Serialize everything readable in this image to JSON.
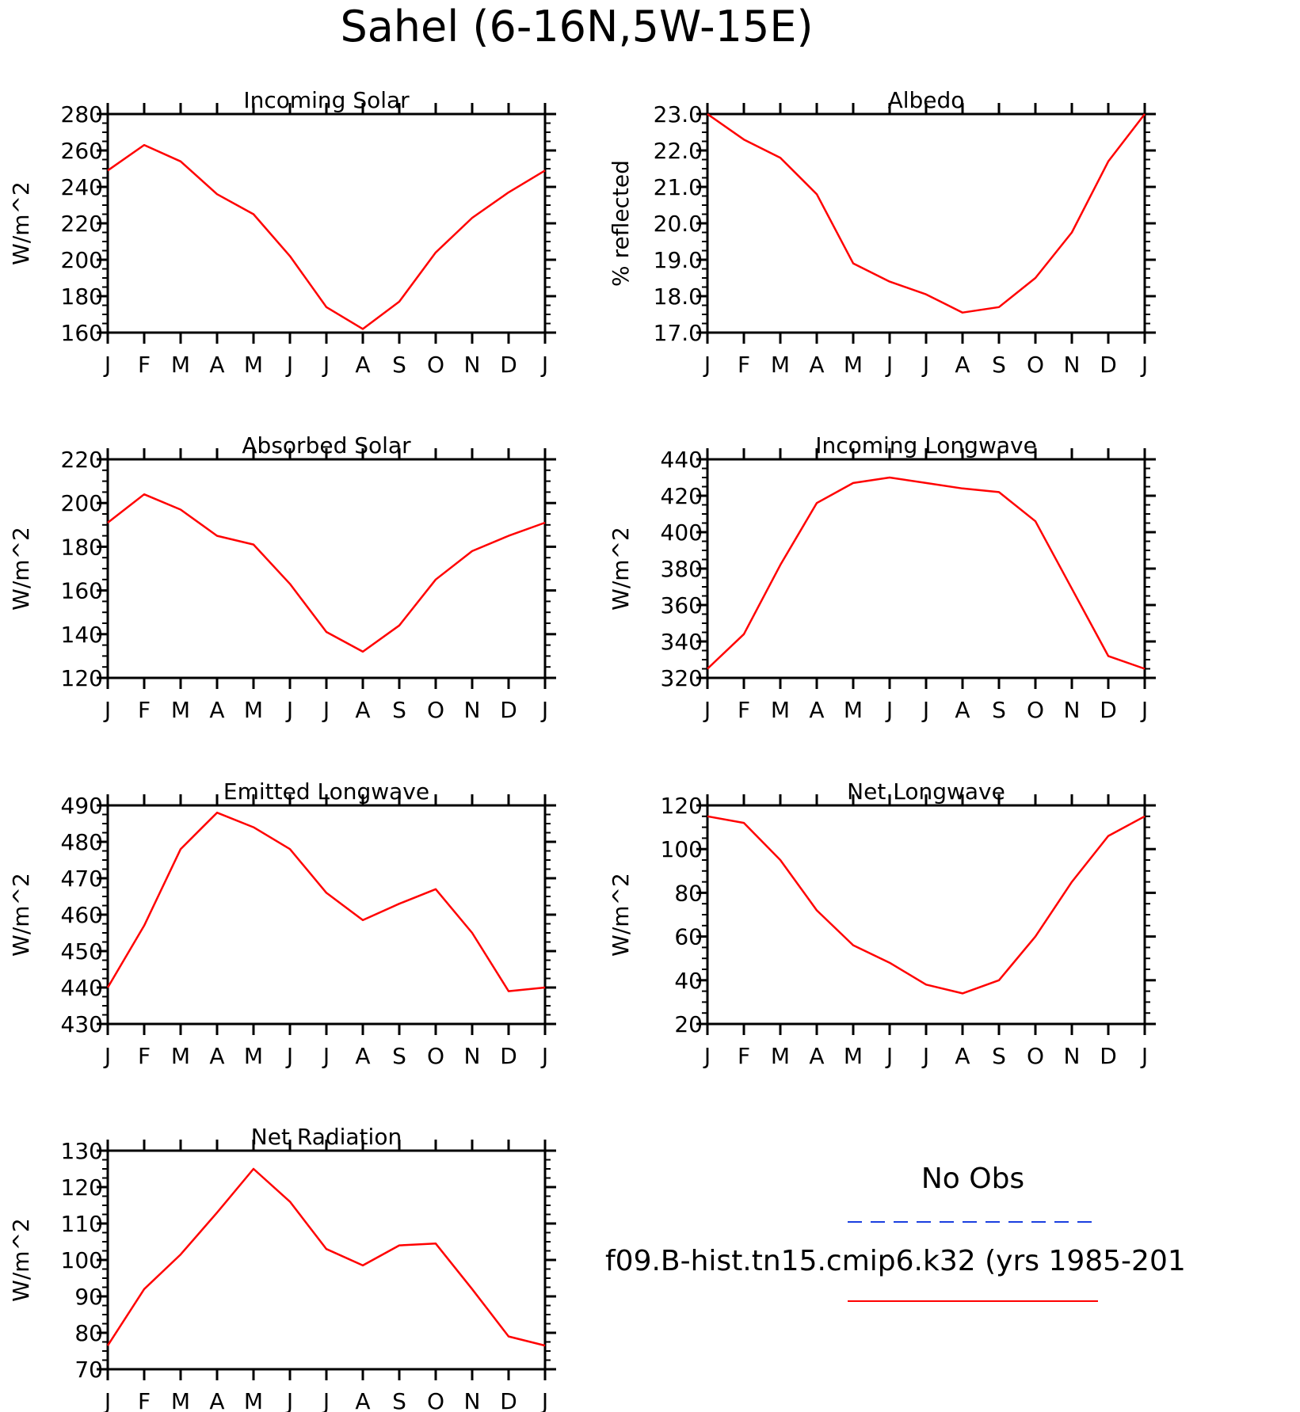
{
  "figure_title": "Sahel (6-16N,5W-15E)",
  "month_labels": [
    "J",
    "F",
    "M",
    "A",
    "M",
    "J",
    "J",
    "A",
    "S",
    "O",
    "N",
    "D",
    "J"
  ],
  "legend": {
    "obs_label": "No Obs",
    "obs_color": "#1a3fe0",
    "model_label": "f09.B-hist.tn15.cmip6.k32 (yrs 1985-201",
    "model_color": "#ff0000"
  },
  "chart_data": [
    {
      "type": "line",
      "title": "Incoming Solar",
      "ylabel": "W/m^2",
      "ylim": [
        160,
        280
      ],
      "yticks": [
        160,
        180,
        200,
        220,
        240,
        260,
        280
      ],
      "ytick_labels": [
        "160",
        "180",
        "200",
        "220",
        "240",
        "260",
        "280"
      ],
      "x": [
        "J",
        "F",
        "M",
        "A",
        "M",
        "J",
        "J",
        "A",
        "S",
        "O",
        "N",
        "D",
        "J"
      ],
      "series": [
        {
          "name": "f09.B-hist.tn15.cmip6.k32 (yrs 1985-201",
          "color": "#ff0000",
          "values": [
            249,
            263,
            254,
            236,
            225,
            202,
            174,
            162,
            177,
            204,
            223,
            237,
            249
          ]
        }
      ]
    },
    {
      "type": "line",
      "title": "Albedo",
      "ylabel": "% reflected",
      "ylim": [
        17,
        23
      ],
      "yticks": [
        17,
        18,
        19,
        20,
        21,
        22,
        23
      ],
      "ytick_labels": [
        "17.0",
        "18.0",
        "19.0",
        "20.0",
        "21.0",
        "22.0",
        "23.0"
      ],
      "x": [
        "J",
        "F",
        "M",
        "A",
        "M",
        "J",
        "J",
        "A",
        "S",
        "O",
        "N",
        "D",
        "J"
      ],
      "series": [
        {
          "name": "f09.B-hist.tn15.cmip6.k32 (yrs 1985-201",
          "color": "#ff0000",
          "values": [
            23.0,
            22.3,
            21.8,
            20.8,
            18.9,
            18.4,
            18.05,
            17.55,
            17.7,
            18.5,
            19.75,
            21.7,
            23.0
          ]
        }
      ]
    },
    {
      "type": "line",
      "title": "Absorbed Solar",
      "ylabel": "W/m^2",
      "ylim": [
        120,
        220
      ],
      "yticks": [
        120,
        140,
        160,
        180,
        200,
        220
      ],
      "ytick_labels": [
        "120",
        "140",
        "160",
        "180",
        "200",
        "220"
      ],
      "x": [
        "J",
        "F",
        "M",
        "A",
        "M",
        "J",
        "J",
        "A",
        "S",
        "O",
        "N",
        "D",
        "J"
      ],
      "series": [
        {
          "name": "f09.B-hist.tn15.cmip6.k32 (yrs 1985-201",
          "color": "#ff0000",
          "values": [
            191,
            204,
            197,
            185,
            181,
            163,
            141,
            132,
            144,
            165,
            178,
            185,
            191
          ]
        }
      ]
    },
    {
      "type": "line",
      "title": "Incoming Longwave",
      "ylabel": "W/m^2",
      "ylim": [
        320,
        440
      ],
      "yticks": [
        320,
        340,
        360,
        380,
        400,
        420,
        440
      ],
      "ytick_labels": [
        "320",
        "340",
        "360",
        "380",
        "400",
        "420",
        "440"
      ],
      "x": [
        "J",
        "F",
        "M",
        "A",
        "M",
        "J",
        "J",
        "A",
        "S",
        "O",
        "N",
        "D",
        "J"
      ],
      "series": [
        {
          "name": "f09.B-hist.tn15.cmip6.k32 (yrs 1985-201",
          "color": "#ff0000",
          "values": [
            325,
            344,
            382,
            416,
            427,
            430,
            427,
            424,
            422,
            406,
            369,
            332,
            325
          ]
        }
      ]
    },
    {
      "type": "line",
      "title": "Emitted Longwave",
      "ylabel": "W/m^2",
      "ylim": [
        430,
        490
      ],
      "yticks": [
        430,
        440,
        450,
        460,
        470,
        480,
        490
      ],
      "ytick_labels": [
        "430",
        "440",
        "450",
        "460",
        "470",
        "480",
        "490"
      ],
      "x": [
        "J",
        "F",
        "M",
        "A",
        "M",
        "J",
        "J",
        "A",
        "S",
        "O",
        "N",
        "D",
        "J"
      ],
      "series": [
        {
          "name": "f09.B-hist.tn15.cmip6.k32 (yrs 1985-201",
          "color": "#ff0000",
          "values": [
            440,
            457,
            478,
            488,
            484,
            478,
            466,
            458.5,
            463,
            467,
            455,
            439,
            440
          ]
        }
      ]
    },
    {
      "type": "line",
      "title": "Net Longwave",
      "ylabel": "W/m^2",
      "ylim": [
        20,
        120
      ],
      "yticks": [
        20,
        40,
        60,
        80,
        100,
        120
      ],
      "ytick_labels": [
        "20",
        "40",
        "60",
        "80",
        "100",
        "120"
      ],
      "x": [
        "J",
        "F",
        "M",
        "A",
        "M",
        "J",
        "J",
        "A",
        "S",
        "O",
        "N",
        "D",
        "J"
      ],
      "series": [
        {
          "name": "f09.B-hist.tn15.cmip6.k32 (yrs 1985-201",
          "color": "#ff0000",
          "values": [
            115,
            112,
            95,
            72,
            56,
            48,
            38,
            34,
            40,
            60,
            85,
            106,
            115
          ]
        }
      ]
    },
    {
      "type": "line",
      "title": "Net Radiation",
      "ylabel": "W/m^2",
      "ylim": [
        70,
        130
      ],
      "yticks": [
        70,
        80,
        90,
        100,
        110,
        120,
        130
      ],
      "ytick_labels": [
        "70",
        "80",
        "90",
        "100",
        "110",
        "120",
        "130"
      ],
      "x": [
        "J",
        "F",
        "M",
        "A",
        "M",
        "J",
        "J",
        "A",
        "S",
        "O",
        "N",
        "D",
        "J"
      ],
      "series": [
        {
          "name": "f09.B-hist.tn15.cmip6.k32 (yrs 1985-201",
          "color": "#ff0000",
          "values": [
            76.5,
            92,
            101.5,
            113,
            125,
            116,
            103,
            98.5,
            104,
            104.5,
            92,
            79,
            76.5
          ]
        }
      ]
    }
  ]
}
